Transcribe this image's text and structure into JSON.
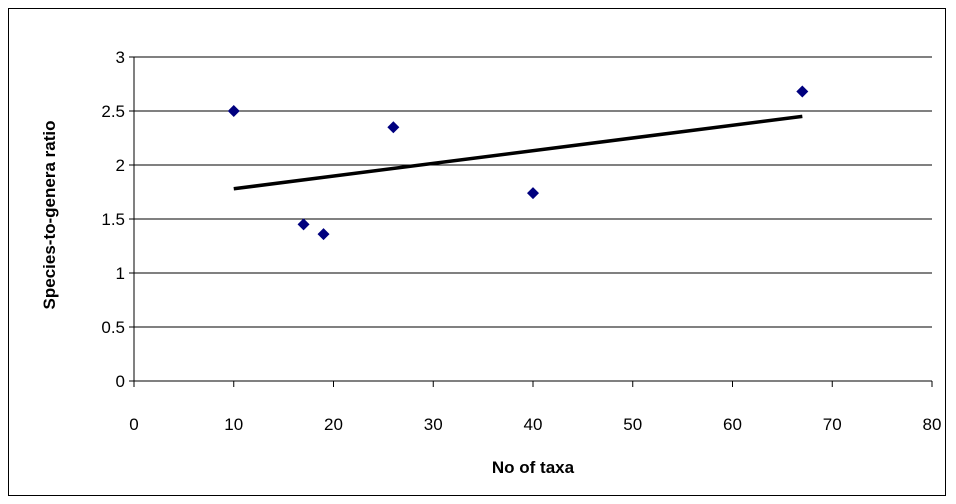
{
  "chart_data": {
    "type": "scatter",
    "xlabel": "No of taxa",
    "ylabel": "Species-to-genera ratio",
    "xlim": [
      0,
      80
    ],
    "ylim": [
      0,
      3
    ],
    "x_ticks": [
      "0",
      "10",
      "20",
      "30",
      "40",
      "50",
      "60",
      "70",
      "80"
    ],
    "y_ticks": [
      "0",
      "0.5",
      "1",
      "1.5",
      "2",
      "2.5",
      "3"
    ],
    "grid": "horizontal",
    "legend": "none",
    "points": [
      {
        "x": 10,
        "y": 2.5
      },
      {
        "x": 17,
        "y": 1.45
      },
      {
        "x": 19,
        "y": 1.36
      },
      {
        "x": 26,
        "y": 2.35
      },
      {
        "x": 40,
        "y": 1.74
      },
      {
        "x": 67,
        "y": 2.68
      }
    ],
    "trendline": {
      "type": "linear",
      "from": {
        "x": 10,
        "y": 1.78
      },
      "to": {
        "x": 67,
        "y": 2.45
      }
    },
    "colors": {
      "marker": "#00007f",
      "trendline": "#000000",
      "grid": "#000000"
    }
  }
}
